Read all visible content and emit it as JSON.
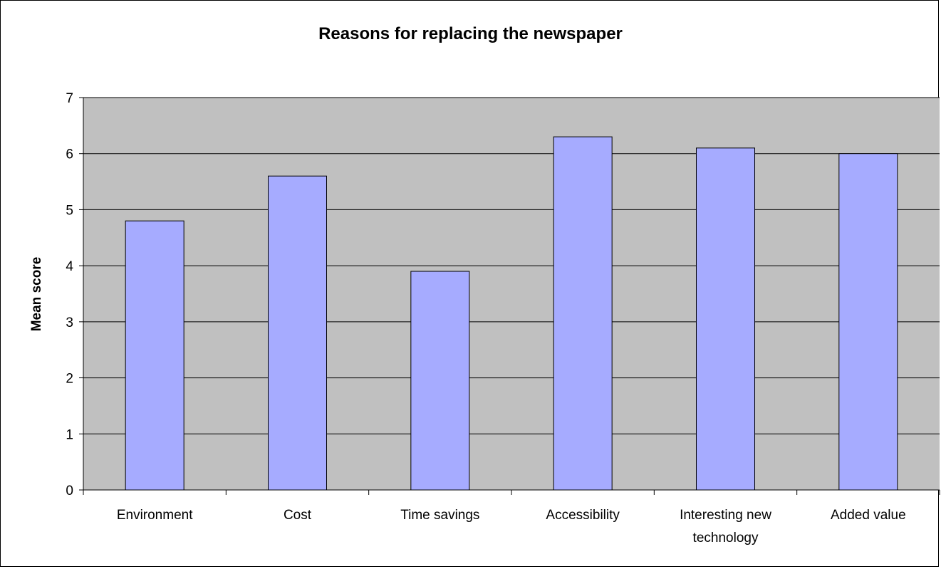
{
  "chart_data": {
    "type": "bar",
    "title": "Reasons for replacing the newspaper",
    "xlabel": "",
    "ylabel": "Mean score",
    "categories": [
      [
        "Environment"
      ],
      [
        "Cost"
      ],
      [
        "Time savings"
      ],
      [
        "Accessibility"
      ],
      [
        "Interesting new",
        "technology"
      ],
      [
        "Added value"
      ]
    ],
    "values": [
      4.8,
      5.6,
      3.9,
      6.3,
      6.1,
      6.0
    ],
    "ylim": [
      0,
      7
    ],
    "yticks": [
      "0",
      "1",
      "2",
      "3",
      "4",
      "5",
      "6",
      "7"
    ],
    "grid": true,
    "legend": "none",
    "colors": {
      "plot_background": "#c0c0c0",
      "bar_fill": "#a6abff",
      "bar_stroke": "#000000",
      "gridline": "#000000"
    }
  }
}
